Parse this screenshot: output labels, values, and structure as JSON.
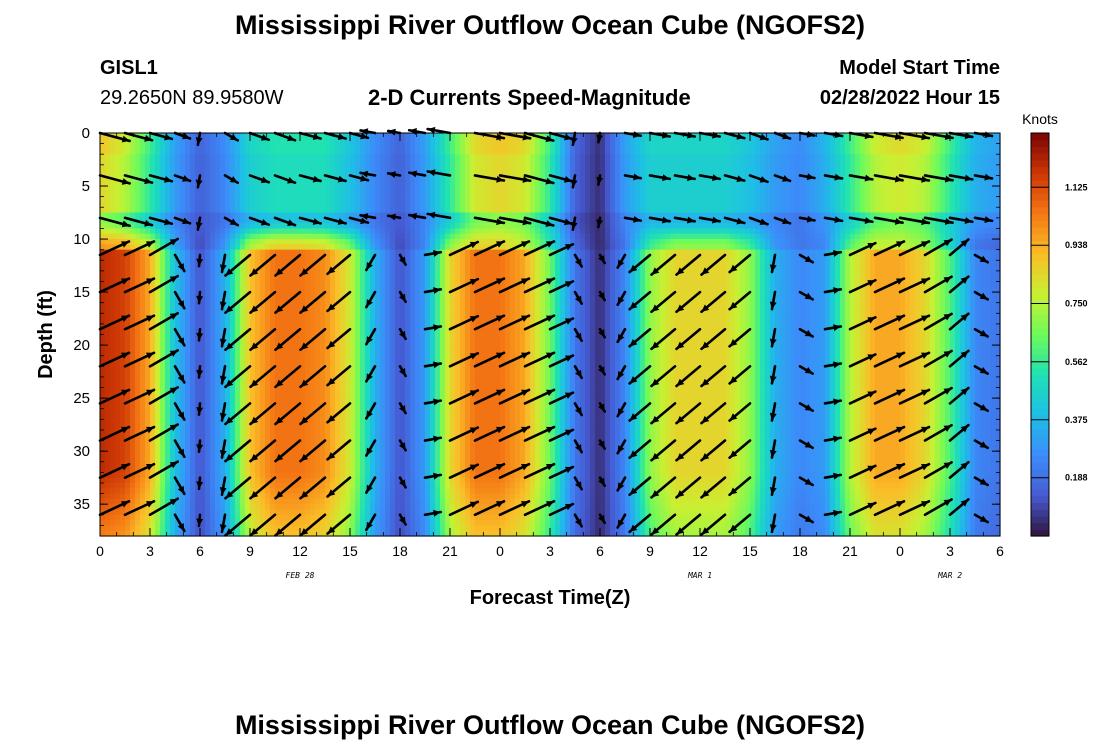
{
  "header": {
    "title": "Mississippi River Outflow Ocean Cube (NGOFS2)",
    "station": "GISL1",
    "coords": "29.2650N  89.9580W",
    "subtitle": "2-D Currents Speed-Magnitude",
    "model_start_label": "Model Start Time",
    "model_start_value": "02/28/2022 Hour 15"
  },
  "footer": {
    "title": "Mississippi River Outflow Ocean Cube (NGOFS2)"
  },
  "chart_data": {
    "type": "heatmap",
    "xlabel": "Forecast Time(Z)",
    "ylabel": "Depth (ft)",
    "x_unit": "hours from 2022-02-28 00Z",
    "xlim": [
      0,
      54
    ],
    "ylim": [
      0,
      38
    ],
    "y_inverted": true,
    "x_ticks": [
      0,
      3,
      6,
      9,
      12,
      15,
      18,
      21,
      24,
      27,
      30,
      33,
      36,
      39,
      42,
      45,
      48,
      51,
      54
    ],
    "x_tick_labels": [
      "0",
      "3",
      "6",
      "9",
      "12",
      "15",
      "18",
      "21",
      "0",
      "3",
      "6",
      "9",
      "12",
      "15",
      "18",
      "21",
      "0",
      "3",
      "6"
    ],
    "y_ticks": [
      0,
      5,
      10,
      15,
      20,
      25,
      30,
      35
    ],
    "y_tick_labels": [
      "0",
      "5",
      "10",
      "15",
      "20",
      "25",
      "30",
      "35"
    ],
    "date_labels": [
      {
        "x": 12,
        "text": "FEB 28"
      },
      {
        "x": 36,
        "text": "MAR 1"
      },
      {
        "x": 51,
        "text": "MAR 2"
      }
    ],
    "colorbar": {
      "unit": "Knots",
      "min": 0.0,
      "max": 1.3,
      "ticks": [
        0.188,
        0.375,
        0.562,
        0.75,
        0.938,
        1.125
      ],
      "tick_labels": [
        "0.188",
        "0.375",
        "0.562",
        "0.750",
        "0.938",
        "1.125"
      ]
    },
    "grid": false,
    "bottom_layer": {
      "depth_range": [
        10,
        38
      ],
      "times": [
        0,
        1.5,
        3,
        4.5,
        6,
        7.5,
        9,
        10.5,
        12,
        13.5,
        15,
        16.5,
        18,
        19.5,
        21,
        22.5,
        24,
        25.5,
        27,
        28.5,
        30,
        31.5,
        33,
        34.5,
        36,
        37.5,
        39,
        40.5,
        42,
        43.5,
        45,
        46.5,
        48,
        49.5,
        51,
        52.5,
        54
      ],
      "speed": [
        1.2,
        1.15,
        0.95,
        0.4,
        0.12,
        0.35,
        0.9,
        1.05,
        1.05,
        1.0,
        0.8,
        0.35,
        0.12,
        0.3,
        0.85,
        1.05,
        1.05,
        0.95,
        0.65,
        0.2,
        0.05,
        0.25,
        0.7,
        0.85,
        0.85,
        0.85,
        0.7,
        0.35,
        0.25,
        0.3,
        0.75,
        0.95,
        0.95,
        0.85,
        0.6,
        0.25,
        0.2
      ],
      "dir_deg": [
        -25,
        -25,
        -30,
        60,
        95,
        100,
        140,
        140,
        140,
        140,
        140,
        120,
        60,
        -10,
        -25,
        -25,
        -25,
        -25,
        -25,
        60,
        60,
        120,
        140,
        140,
        140,
        140,
        140,
        100,
        30,
        -10,
        -25,
        -25,
        -25,
        -30,
        -40,
        30,
        60
      ]
    },
    "top_layer": {
      "depth_range": [
        0,
        9
      ],
      "times": [
        0,
        1.5,
        3,
        4.5,
        6,
        7.5,
        9,
        10.5,
        12,
        13.5,
        15,
        16.5,
        18,
        19.5,
        21,
        22.5,
        24,
        25.5,
        27,
        28.5,
        30,
        31.5,
        33,
        34.5,
        36,
        37.5,
        39,
        40.5,
        42,
        43.5,
        45,
        46.5,
        48,
        49.5,
        51,
        52.5,
        54
      ],
      "speed": [
        0.85,
        0.75,
        0.55,
        0.3,
        0.15,
        0.25,
        0.45,
        0.5,
        0.5,
        0.5,
        0.4,
        0.25,
        0.15,
        0.3,
        0.55,
        0.8,
        0.85,
        0.8,
        0.55,
        0.15,
        0.05,
        0.3,
        0.45,
        0.45,
        0.45,
        0.45,
        0.4,
        0.3,
        0.25,
        0.35,
        0.55,
        0.75,
        0.8,
        0.75,
        0.55,
        0.35,
        0.3
      ],
      "dir_deg": [
        15,
        15,
        15,
        20,
        100,
        30,
        20,
        20,
        15,
        15,
        15,
        -170,
        -170,
        -170,
        -170,
        10,
        10,
        15,
        15,
        100,
        100,
        10,
        10,
        10,
        10,
        15,
        20,
        20,
        10,
        10,
        10,
        10,
        10,
        10,
        10,
        10,
        10
      ]
    },
    "vector_depths": [
      0,
      4,
      8,
      11.5,
      15,
      18.5,
      22,
      25.5,
      29,
      32.5,
      36
    ]
  }
}
